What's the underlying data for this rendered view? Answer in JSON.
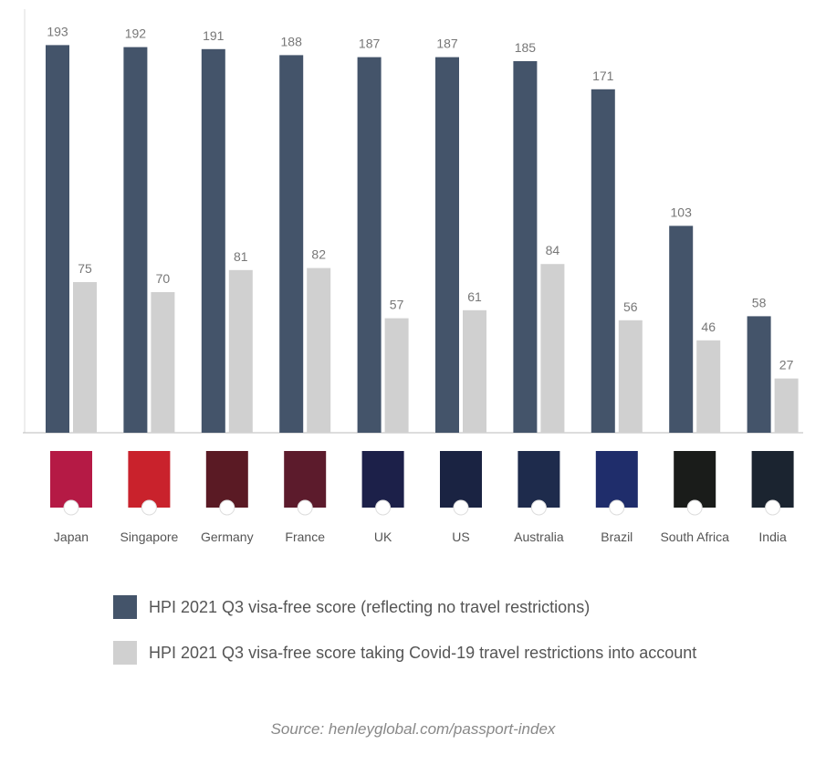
{
  "chart_data": {
    "type": "bar",
    "categories": [
      "Japan",
      "Singapore",
      "Germany",
      "France",
      "UK",
      "US",
      "Australia",
      "Brazil",
      "South Africa",
      "India"
    ],
    "series": [
      {
        "name": "HPI 2021 Q3 visa-free score (reflecting no travel restrictions)",
        "color": "#44546a",
        "values": [
          193,
          192,
          191,
          188,
          187,
          187,
          185,
          171,
          103,
          58
        ]
      },
      {
        "name": "HPI 2021 Q3 visa-free score taking Covid-19 travel restrictions into account",
        "color": "#d0d0d0",
        "values": [
          75,
          70,
          81,
          82,
          57,
          61,
          84,
          56,
          46,
          27
        ]
      }
    ],
    "passport_colors": [
      "#b51a45",
      "#c9222c",
      "#5a1a24",
      "#5c1b2c",
      "#1c2049",
      "#1a2342",
      "#1e2b4c",
      "#1f2d6b",
      "#1a1c1a",
      "#1b2430"
    ],
    "legend_position": "bottom",
    "grid": false,
    "source": "Source: henleyglobal.com/passport-index"
  }
}
